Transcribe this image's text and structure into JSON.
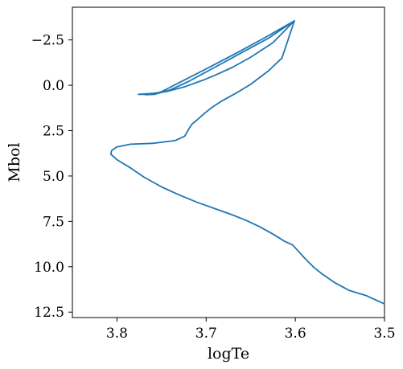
{
  "chart_data": {
    "type": "line",
    "xlabel": "logTe",
    "ylabel": "Mbol",
    "xlim": [
      3.85,
      3.5
    ],
    "ylim": [
      12.8,
      -4.3
    ],
    "x_inverted": true,
    "y_inverted": true,
    "grid": false,
    "xticks": [
      {
        "value": 3.8,
        "label": "3.8"
      },
      {
        "value": 3.7,
        "label": "3.7"
      },
      {
        "value": 3.6,
        "label": "3.6"
      },
      {
        "value": 3.5,
        "label": "3.5"
      }
    ],
    "yticks": [
      {
        "value": -2.5,
        "label": "−2.5"
      },
      {
        "value": 0.0,
        "label": "0.0"
      },
      {
        "value": 2.5,
        "label": "2.5"
      },
      {
        "value": 5.0,
        "label": "5.0"
      },
      {
        "value": 7.5,
        "label": "7.5"
      },
      {
        "value": 10.0,
        "label": "10.0"
      },
      {
        "value": 12.5,
        "label": "12.5"
      }
    ],
    "series": [
      {
        "color": "#1f77b4",
        "x": [
          3.5,
          3.52,
          3.54,
          3.555,
          3.57,
          3.58,
          3.59,
          3.603,
          3.612,
          3.625,
          3.64,
          3.655,
          3.67,
          3.69,
          3.71,
          3.73,
          3.75,
          3.77,
          3.785,
          3.8,
          3.807,
          3.806,
          3.8,
          3.785,
          3.76,
          3.735,
          3.724,
          3.72,
          3.716,
          3.71,
          3.702,
          3.693,
          3.682,
          3.667,
          3.65,
          3.63,
          3.615,
          3.601,
          3.635,
          3.665,
          3.7,
          3.73,
          3.75,
          3.76,
          3.768,
          3.776,
          3.77,
          3.76,
          3.745,
          3.725,
          3.705,
          3.69,
          3.67,
          3.65,
          3.625,
          3.601,
          3.63,
          3.66,
          3.69,
          3.72,
          3.74,
          3.758,
          3.768
        ],
        "y": [
          12.05,
          11.6,
          11.3,
          10.9,
          10.4,
          10.0,
          9.5,
          8.8,
          8.6,
          8.2,
          7.8,
          7.45,
          7.15,
          6.8,
          6.45,
          6.05,
          5.6,
          5.05,
          4.55,
          4.1,
          3.8,
          3.6,
          3.4,
          3.25,
          3.2,
          3.05,
          2.8,
          2.45,
          2.15,
          1.9,
          1.55,
          1.2,
          0.85,
          0.45,
          -0.05,
          -0.8,
          -1.5,
          -3.55,
          -2.6,
          -1.8,
          -0.9,
          -0.15,
          0.35,
          0.5,
          0.5,
          0.5,
          0.48,
          0.45,
          0.35,
          0.1,
          -0.25,
          -0.55,
          -1.0,
          -1.55,
          -2.35,
          -3.55,
          -2.6,
          -1.8,
          -1.0,
          -0.2,
          0.25,
          0.5,
          0.52
        ]
      }
    ]
  }
}
